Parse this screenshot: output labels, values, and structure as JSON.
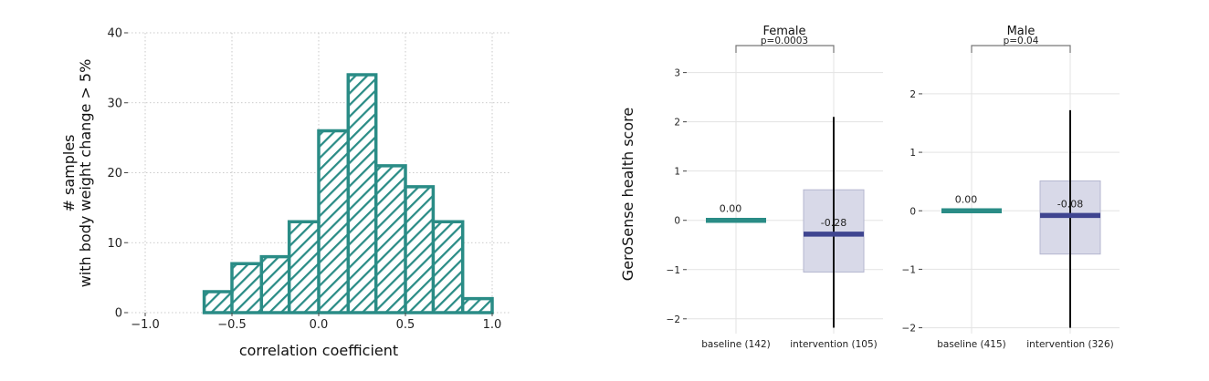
{
  "colors": {
    "teal": "#2a8c86",
    "navy": "#3f4590",
    "ci_fill": "#d8d9e8",
    "grid": "#bbbbbb"
  },
  "chart_data": [
    {
      "type": "bar",
      "subtype": "histogram",
      "xlabel": "correlation coefficient",
      "ylabel_line1": "# samples",
      "ylabel_line2": "with body weight change > 5%",
      "xlim": [
        -1.1,
        1.1
      ],
      "ylim": [
        0,
        40
      ],
      "xticks": [
        -1.0,
        -0.5,
        0.0,
        0.5,
        1.0
      ],
      "xtick_labels": [
        "−1.0",
        "−0.5",
        "0.0",
        "0.5",
        "1.0"
      ],
      "yticks": [
        0,
        10,
        20,
        30,
        40
      ],
      "ytick_labels": [
        "0",
        "10",
        "20",
        "30",
        "40"
      ],
      "bin_edges": [
        -0.66,
        -0.5,
        -0.33,
        -0.17,
        0.0,
        0.17,
        0.33,
        0.5,
        0.66,
        0.83,
        1.0
      ],
      "counts": [
        3,
        7,
        8,
        13,
        26,
        34,
        21,
        18,
        13,
        2
      ],
      "grid": true,
      "hatch": "diagonal"
    },
    {
      "type": "bar",
      "subtype": "estimate-with-interval",
      "title": "Female",
      "ylabel": "GeroSense health score",
      "categories": [
        "baseline (142)",
        "intervention (105)"
      ],
      "values": [
        0.0,
        -0.28
      ],
      "value_labels": [
        "0.00",
        "-0.28"
      ],
      "interval_low": [
        null,
        -1.05
      ],
      "interval_high": [
        null,
        0.62
      ],
      "whisker_low": [
        null,
        -2.18
      ],
      "whisker_high": [
        null,
        2.1
      ],
      "ylim": [
        -2.3,
        3.4
      ],
      "yticks": [
        -2,
        -1,
        0,
        1,
        2,
        3
      ],
      "ytick_labels": [
        "−2",
        "−1",
        "0",
        "1",
        "2",
        "3"
      ],
      "p_value": "p=0.0003",
      "grid": true
    },
    {
      "type": "bar",
      "subtype": "estimate-with-interval",
      "title": "Male",
      "categories": [
        "baseline (415)",
        "intervention (326)"
      ],
      "values": [
        0.0,
        -0.08
      ],
      "value_labels": [
        "0.00",
        "-0.08"
      ],
      "interval_low": [
        null,
        -0.74
      ],
      "interval_high": [
        null,
        0.51
      ],
      "whisker_low": [
        null,
        -2.0
      ],
      "whisker_high": [
        null,
        1.72
      ],
      "ylim": [
        -2.1,
        2.7
      ],
      "yticks": [
        -2,
        -1,
        0,
        1,
        2
      ],
      "ytick_labels": [
        "−2",
        "−1",
        "0",
        "1",
        "2"
      ],
      "p_value": "p=0.04",
      "grid": true
    }
  ]
}
